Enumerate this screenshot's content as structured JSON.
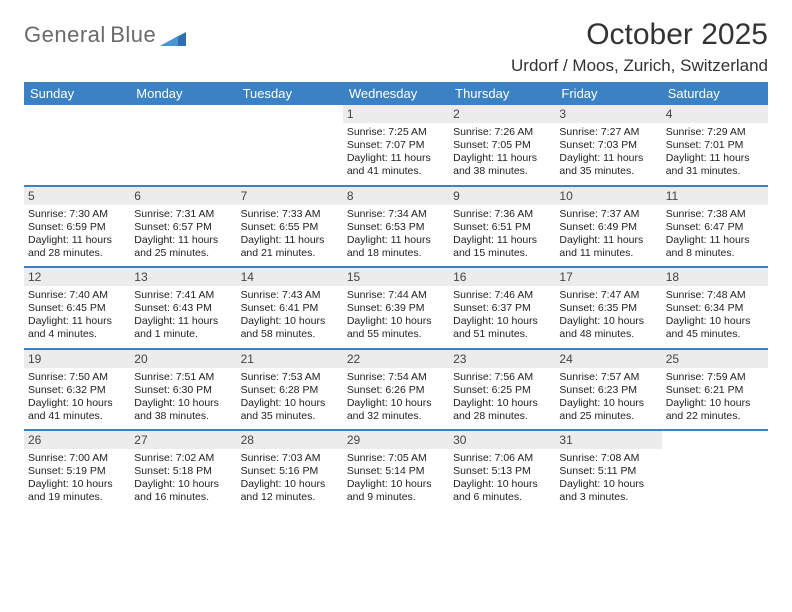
{
  "brand": {
    "name1": "General",
    "name2": "Blue"
  },
  "title": "October 2025",
  "location": "Urdorf / Moos, Zurich, Switzerland",
  "colors": {
    "header_bg": "#3a82c4",
    "header_fg": "#ffffff",
    "daynum_bg": "#ececec",
    "week_sep": "#3a82c4"
  },
  "weekdays": [
    "Sunday",
    "Monday",
    "Tuesday",
    "Wednesday",
    "Thursday",
    "Friday",
    "Saturday"
  ],
  "weeks": [
    [
      null,
      null,
      null,
      {
        "n": "1",
        "sr": "7:25 AM",
        "ss": "7:07 PM",
        "dl": "11 hours and 41 minutes."
      },
      {
        "n": "2",
        "sr": "7:26 AM",
        "ss": "7:05 PM",
        "dl": "11 hours and 38 minutes."
      },
      {
        "n": "3",
        "sr": "7:27 AM",
        "ss": "7:03 PM",
        "dl": "11 hours and 35 minutes."
      },
      {
        "n": "4",
        "sr": "7:29 AM",
        "ss": "7:01 PM",
        "dl": "11 hours and 31 minutes."
      }
    ],
    [
      {
        "n": "5",
        "sr": "7:30 AM",
        "ss": "6:59 PM",
        "dl": "11 hours and 28 minutes."
      },
      {
        "n": "6",
        "sr": "7:31 AM",
        "ss": "6:57 PM",
        "dl": "11 hours and 25 minutes."
      },
      {
        "n": "7",
        "sr": "7:33 AM",
        "ss": "6:55 PM",
        "dl": "11 hours and 21 minutes."
      },
      {
        "n": "8",
        "sr": "7:34 AM",
        "ss": "6:53 PM",
        "dl": "11 hours and 18 minutes."
      },
      {
        "n": "9",
        "sr": "7:36 AM",
        "ss": "6:51 PM",
        "dl": "11 hours and 15 minutes."
      },
      {
        "n": "10",
        "sr": "7:37 AM",
        "ss": "6:49 PM",
        "dl": "11 hours and 11 minutes."
      },
      {
        "n": "11",
        "sr": "7:38 AM",
        "ss": "6:47 PM",
        "dl": "11 hours and 8 minutes."
      }
    ],
    [
      {
        "n": "12",
        "sr": "7:40 AM",
        "ss": "6:45 PM",
        "dl": "11 hours and 4 minutes."
      },
      {
        "n": "13",
        "sr": "7:41 AM",
        "ss": "6:43 PM",
        "dl": "11 hours and 1 minute."
      },
      {
        "n": "14",
        "sr": "7:43 AM",
        "ss": "6:41 PM",
        "dl": "10 hours and 58 minutes."
      },
      {
        "n": "15",
        "sr": "7:44 AM",
        "ss": "6:39 PM",
        "dl": "10 hours and 55 minutes."
      },
      {
        "n": "16",
        "sr": "7:46 AM",
        "ss": "6:37 PM",
        "dl": "10 hours and 51 minutes."
      },
      {
        "n": "17",
        "sr": "7:47 AM",
        "ss": "6:35 PM",
        "dl": "10 hours and 48 minutes."
      },
      {
        "n": "18",
        "sr": "7:48 AM",
        "ss": "6:34 PM",
        "dl": "10 hours and 45 minutes."
      }
    ],
    [
      {
        "n": "19",
        "sr": "7:50 AM",
        "ss": "6:32 PM",
        "dl": "10 hours and 41 minutes."
      },
      {
        "n": "20",
        "sr": "7:51 AM",
        "ss": "6:30 PM",
        "dl": "10 hours and 38 minutes."
      },
      {
        "n": "21",
        "sr": "7:53 AM",
        "ss": "6:28 PM",
        "dl": "10 hours and 35 minutes."
      },
      {
        "n": "22",
        "sr": "7:54 AM",
        "ss": "6:26 PM",
        "dl": "10 hours and 32 minutes."
      },
      {
        "n": "23",
        "sr": "7:56 AM",
        "ss": "6:25 PM",
        "dl": "10 hours and 28 minutes."
      },
      {
        "n": "24",
        "sr": "7:57 AM",
        "ss": "6:23 PM",
        "dl": "10 hours and 25 minutes."
      },
      {
        "n": "25",
        "sr": "7:59 AM",
        "ss": "6:21 PM",
        "dl": "10 hours and 22 minutes."
      }
    ],
    [
      {
        "n": "26",
        "sr": "7:00 AM",
        "ss": "5:19 PM",
        "dl": "10 hours and 19 minutes."
      },
      {
        "n": "27",
        "sr": "7:02 AM",
        "ss": "5:18 PM",
        "dl": "10 hours and 16 minutes."
      },
      {
        "n": "28",
        "sr": "7:03 AM",
        "ss": "5:16 PM",
        "dl": "10 hours and 12 minutes."
      },
      {
        "n": "29",
        "sr": "7:05 AM",
        "ss": "5:14 PM",
        "dl": "10 hours and 9 minutes."
      },
      {
        "n": "30",
        "sr": "7:06 AM",
        "ss": "5:13 PM",
        "dl": "10 hours and 6 minutes."
      },
      {
        "n": "31",
        "sr": "7:08 AM",
        "ss": "5:11 PM",
        "dl": "10 hours and 3 minutes."
      },
      null
    ]
  ],
  "labels": {
    "sunrise": "Sunrise:",
    "sunset": "Sunset:",
    "daylight": "Daylight:"
  }
}
